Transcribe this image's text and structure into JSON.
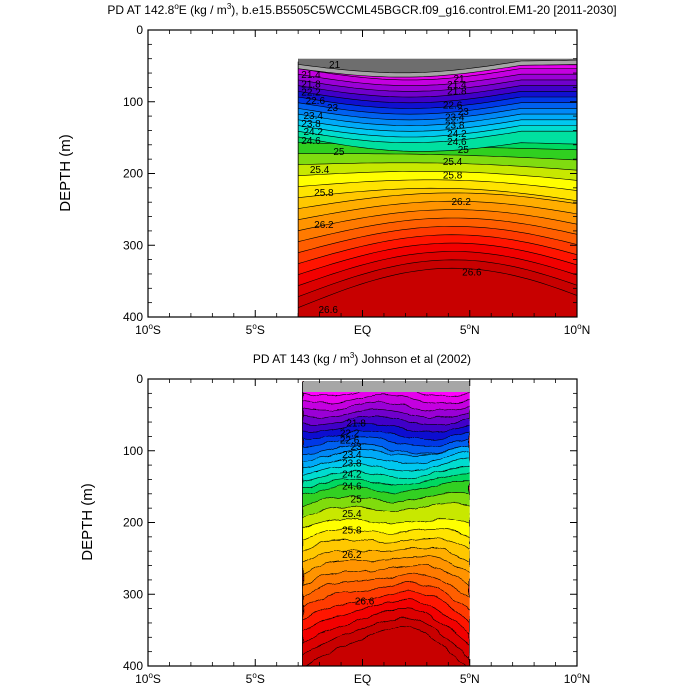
{
  "chart_data": [
    {
      "type": "contour",
      "title": "PD AT 142.8°E (kg / m³), b.e15.B5505C5WCCML45BGCR.f09_g16.control.EM1-20 [2011-2030]",
      "title_parts": {
        "pre": "PD AT 142.8",
        "deg": "o",
        "mid": "E (kg / m",
        "sup": "3",
        "post": "), b.e15.B5505C5WCCML45BGCR.f09_g16.control.EM1-20 [2011-2030]"
      },
      "ylabel": "DEPTH (m)",
      "xlim": [
        -10,
        10
      ],
      "ylim": [
        400,
        0
      ],
      "y_ticks": [
        "0",
        "100",
        "200",
        "300",
        "400"
      ],
      "x_ticks": [
        {
          "num": "10",
          "deg": "o",
          "hemi": "S"
        },
        {
          "num": "5",
          "deg": "o",
          "hemi": "S"
        },
        {
          "num": "EQ",
          "deg": "",
          "hemi": ""
        },
        {
          "num": "5",
          "deg": "o",
          "hemi": "N"
        },
        {
          "num": "10",
          "deg": "o",
          "hemi": "N"
        }
      ],
      "data_xrange": [
        -3.0,
        10.0
      ],
      "surface_layer_color": "#a6a6a6",
      "dark_cap_color": "#6e6e6e",
      "contour_labels": [
        {
          "text": "21",
          "x": -1.3,
          "y": 49
        },
        {
          "text": "21.4",
          "x": -2.4,
          "y": 63
        },
        {
          "text": "21.8",
          "x": -2.4,
          "y": 76
        },
        {
          "text": "22.2",
          "x": -2.4,
          "y": 87
        },
        {
          "text": "22.6",
          "x": -2.2,
          "y": 99
        },
        {
          "text": "23",
          "x": -1.4,
          "y": 109
        },
        {
          "text": "23.4",
          "x": -2.3,
          "y": 120
        },
        {
          "text": "23.8",
          "x": -2.4,
          "y": 131
        },
        {
          "text": "24.2",
          "x": -2.3,
          "y": 142
        },
        {
          "text": "24.6",
          "x": -2.4,
          "y": 155
        },
        {
          "text": "25",
          "x": -1.1,
          "y": 170
        },
        {
          "text": "25.4",
          "x": -2.0,
          "y": 195
        },
        {
          "text": "25.8",
          "x": -1.8,
          "y": 227
        },
        {
          "text": "26.2",
          "x": -1.8,
          "y": 272
        },
        {
          "text": "26.6",
          "x": -1.6,
          "y": 390
        },
        {
          "text": "21",
          "x": 4.5,
          "y": 68
        },
        {
          "text": "21.4",
          "x": 4.4,
          "y": 77
        },
        {
          "text": "21.8",
          "x": 4.4,
          "y": 86
        },
        {
          "text": "22.6",
          "x": 4.2,
          "y": 105
        },
        {
          "text": "23",
          "x": 4.7,
          "y": 114
        },
        {
          "text": "23.4",
          "x": 4.3,
          "y": 122
        },
        {
          "text": "23.8",
          "x": 4.3,
          "y": 133
        },
        {
          "text": "24.2",
          "x": 4.4,
          "y": 145
        },
        {
          "text": "24.6",
          "x": 4.4,
          "y": 156
        },
        {
          "text": "25",
          "x": 4.7,
          "y": 167
        },
        {
          "text": "25.4",
          "x": 4.2,
          "y": 184
        },
        {
          "text": "25.8",
          "x": 4.2,
          "y": 203
        },
        {
          "text": "26.2",
          "x": 4.6,
          "y": 240
        },
        {
          "text": "26.6",
          "x": 5.1,
          "y": 338
        }
      ]
    },
    {
      "type": "contour",
      "title": "PD AT 143 (kg / m³) Johnson et al (2002)",
      "title_parts": {
        "pre": "PD AT 143 (kg / m",
        "deg": "",
        "mid": "",
        "sup": "3",
        "post": ") Johnson et al (2002)"
      },
      "ylabel": "DEPTH (m)",
      "xlim": [
        -10,
        10
      ],
      "ylim": [
        400,
        0
      ],
      "y_ticks": [
        "0",
        "100",
        "200",
        "300",
        "400"
      ],
      "x_ticks": [
        {
          "num": "10",
          "deg": "o",
          "hemi": "S"
        },
        {
          "num": "5",
          "deg": "o",
          "hemi": "S"
        },
        {
          "num": "EQ",
          "deg": "",
          "hemi": ""
        },
        {
          "num": "5",
          "deg": "o",
          "hemi": "N"
        },
        {
          "num": "10",
          "deg": "o",
          "hemi": "N"
        }
      ],
      "data_xrange": [
        -2.8,
        5.0
      ],
      "surface_layer_color": "#a6a6a6",
      "dark_cap_color": "",
      "contour_labels": [
        {
          "text": "21.8",
          "x": -0.3,
          "y": 62
        },
        {
          "text": "22.2",
          "x": -0.6,
          "y": 76
        },
        {
          "text": "22.6",
          "x": -0.6,
          "y": 86
        },
        {
          "text": "23",
          "x": -0.3,
          "y": 95
        },
        {
          "text": "23.4",
          "x": -0.5,
          "y": 106
        },
        {
          "text": "23.8",
          "x": -0.5,
          "y": 118
        },
        {
          "text": "24.2",
          "x": -0.5,
          "y": 133
        },
        {
          "text": "24.6",
          "x": -0.5,
          "y": 150
        },
        {
          "text": "25",
          "x": -0.3,
          "y": 168
        },
        {
          "text": "25.4",
          "x": -0.5,
          "y": 188
        },
        {
          "text": "25.8",
          "x": -0.5,
          "y": 211
        },
        {
          "text": "26.2",
          "x": -0.5,
          "y": 245
        },
        {
          "text": "26.6",
          "x": 0.1,
          "y": 310
        }
      ]
    }
  ]
}
